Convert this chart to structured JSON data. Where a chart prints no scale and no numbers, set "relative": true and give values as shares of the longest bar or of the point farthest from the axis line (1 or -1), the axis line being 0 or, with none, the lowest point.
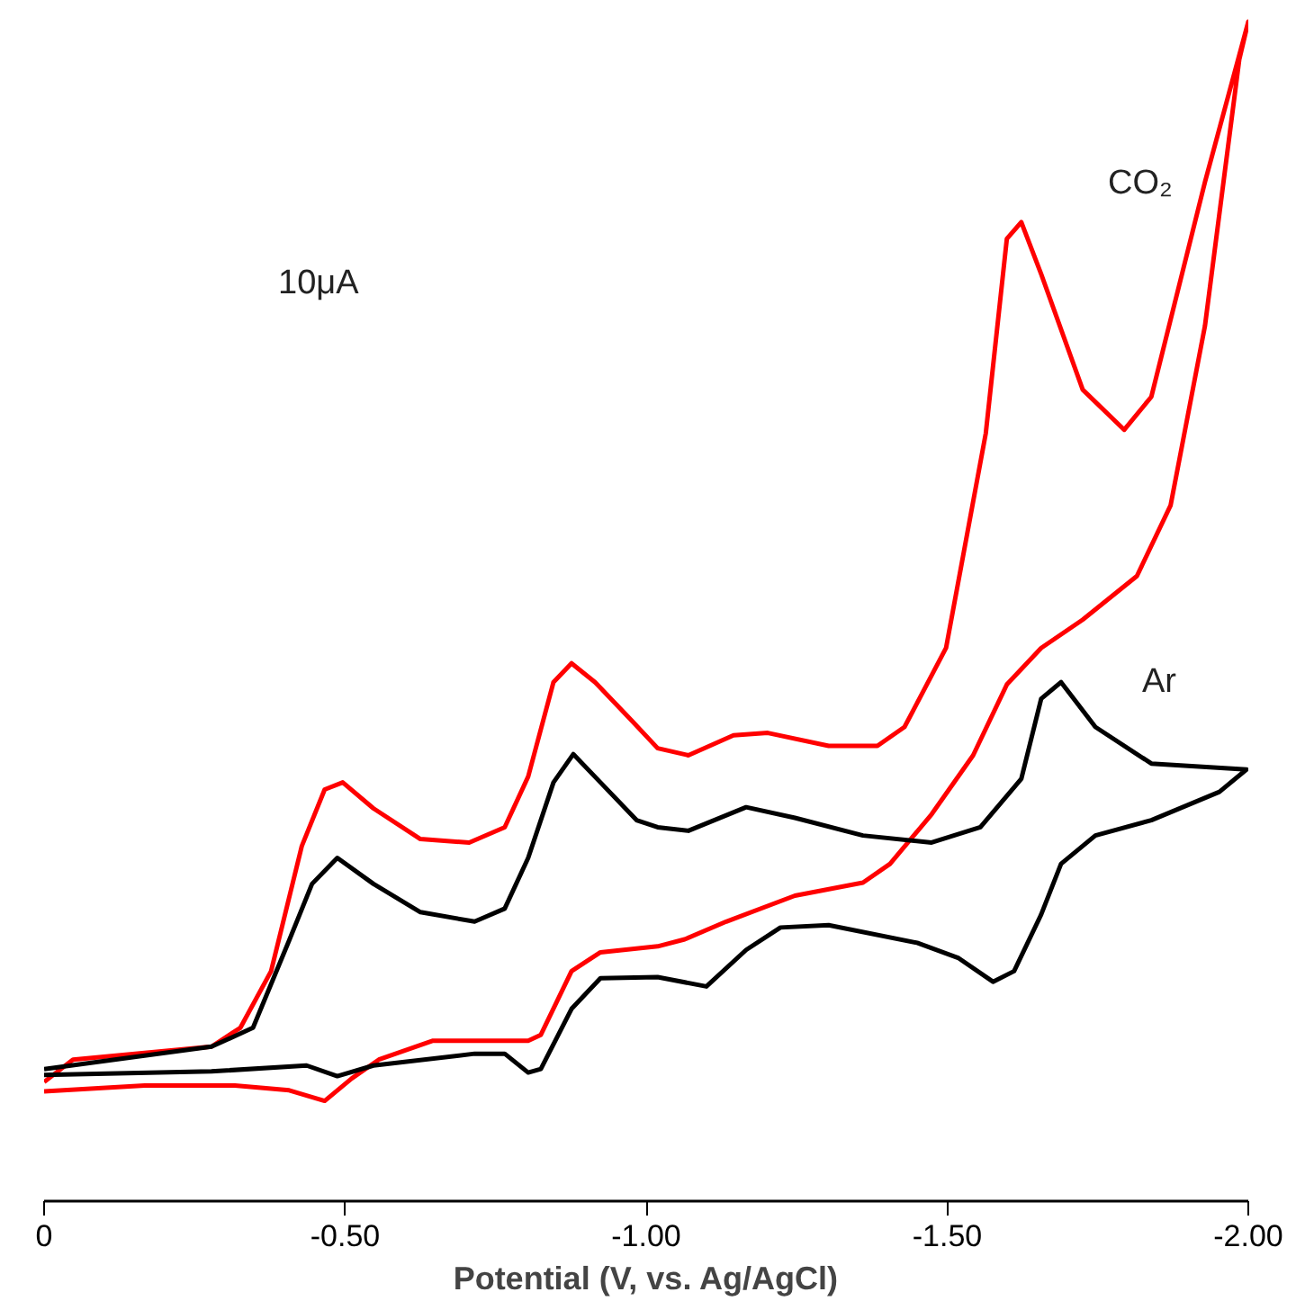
{
  "chart_data": {
    "type": "line",
    "relative": true,
    "xlabel": "Potential (V, vs. Ag/AgCl)",
    "xlim": [
      0,
      -2.0
    ],
    "xticks": [
      0,
      {
        "value": -0.5,
        "label": "-0.50"
      },
      {
        "value": -1.0,
        "label": "-1.00"
      },
      {
        "value": -1.5,
        "label": "-1.50"
      },
      {
        "value": -2.0,
        "label": "-2.00"
      }
    ],
    "grid": false,
    "legend": false,
    "marker": "none",
    "line_style": "solid",
    "annotations": [
      "10μA"
    ],
    "series": [
      {
        "name": "CO₂",
        "color": "#ff0000",
        "x": [
          0,
          -0.048,
          -0.278,
          -0.326,
          -0.377,
          -0.428,
          -0.466,
          -0.496,
          -0.547,
          -0.625,
          -0.706,
          -0.765,
          -0.804,
          -0.846,
          -0.876,
          -0.915,
          -0.975,
          -1.019,
          -1.07,
          -1.145,
          -1.202,
          -1.303,
          -1.384,
          -1.429,
          -1.498,
          -1.564,
          -1.599,
          -1.623,
          -1.656,
          -1.725,
          -1.794,
          -1.839,
          -1.928,
          -2.0,
          -1.985,
          -1.928,
          -1.871,
          -1.815,
          -1.725,
          -1.656,
          -1.599,
          -1.543,
          -1.474,
          -1.405,
          -1.36,
          -1.247,
          -1.133,
          -1.064,
          -1.019,
          -0.924,
          -0.876,
          -0.825,
          -0.804,
          -0.706,
          -0.646,
          -0.556,
          -0.511,
          -0.466,
          -0.407,
          -0.317,
          -0.167,
          0
        ],
        "values": [
          0.101,
          0.12,
          0.131,
          0.147,
          0.195,
          0.301,
          0.349,
          0.355,
          0.333,
          0.307,
          0.304,
          0.317,
          0.36,
          0.44,
          0.456,
          0.44,
          0.408,
          0.384,
          0.378,
          0.395,
          0.397,
          0.386,
          0.386,
          0.402,
          0.469,
          0.651,
          0.816,
          0.83,
          0.786,
          0.688,
          0.654,
          0.682,
          0.864,
          1.0,
          0.968,
          0.742,
          0.59,
          0.53,
          0.493,
          0.469,
          0.438,
          0.378,
          0.328,
          0.286,
          0.27,
          0.259,
          0.237,
          0.222,
          0.216,
          0.211,
          0.195,
          0.141,
          0.136,
          0.136,
          0.136,
          0.12,
          0.104,
          0.085,
          0.094,
          0.098,
          0.098,
          0.093
        ]
      },
      {
        "name": "Ar",
        "color": "#000000",
        "x": [
          0,
          -0.278,
          -0.347,
          -0.407,
          -0.445,
          -0.487,
          -0.547,
          -0.625,
          -0.715,
          -0.765,
          -0.804,
          -0.846,
          -0.879,
          -0.924,
          -0.984,
          -1.019,
          -1.07,
          -1.166,
          -1.247,
          -1.36,
          -1.474,
          -1.555,
          -1.623,
          -1.656,
          -1.689,
          -1.746,
          -1.839,
          -1.997,
          -1.952,
          -1.839,
          -1.746,
          -1.689,
          -1.656,
          -1.611,
          -1.576,
          -1.519,
          -1.45,
          -1.303,
          -1.223,
          -1.166,
          -1.1,
          -1.019,
          -0.924,
          -0.876,
          -0.825,
          -0.804,
          -0.765,
          -0.715,
          -0.547,
          -0.487,
          -0.436,
          -0.278,
          0
        ],
        "values": [
          0.112,
          0.131,
          0.147,
          0.221,
          0.269,
          0.291,
          0.269,
          0.245,
          0.237,
          0.248,
          0.291,
          0.355,
          0.379,
          0.355,
          0.323,
          0.317,
          0.314,
          0.334,
          0.325,
          0.31,
          0.304,
          0.317,
          0.358,
          0.426,
          0.44,
          0.402,
          0.371,
          0.366,
          0.347,
          0.323,
          0.31,
          0.286,
          0.243,
          0.195,
          0.186,
          0.206,
          0.219,
          0.234,
          0.232,
          0.213,
          0.182,
          0.19,
          0.189,
          0.163,
          0.112,
          0.109,
          0.125,
          0.125,
          0.115,
          0.106,
          0.115,
          0.11,
          0.107
        ]
      }
    ]
  }
}
